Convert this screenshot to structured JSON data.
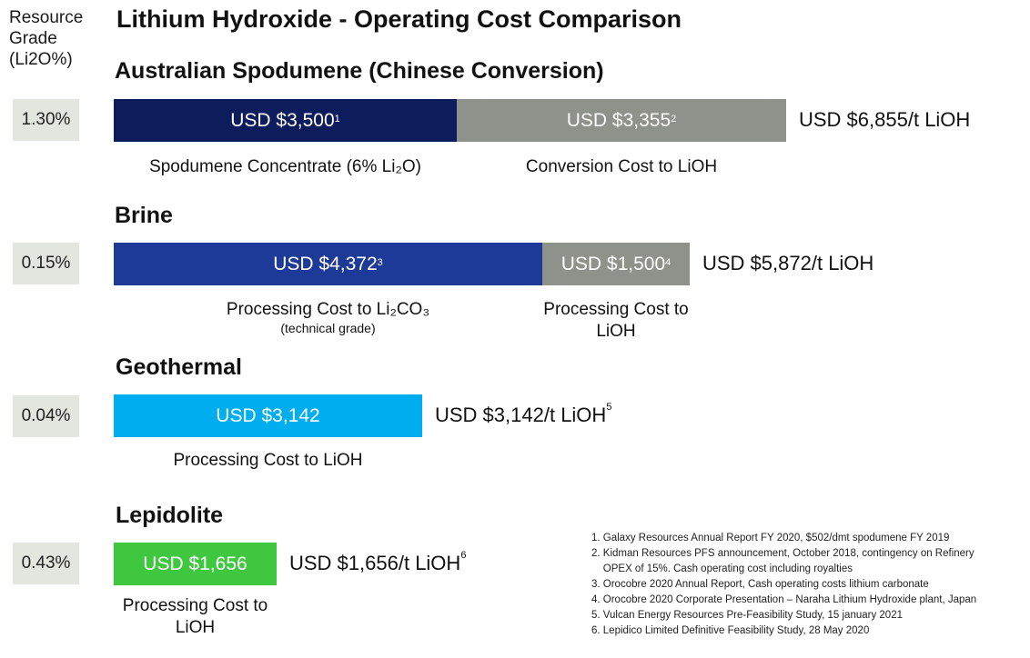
{
  "title": "Lithium Hydroxide - Operating Cost Comparison",
  "grade_header": "Resource Grade (Li2O%)",
  "chart_data": {
    "type": "bar",
    "orientation": "horizontal",
    "stacked": true,
    "unit": "USD/t LiOH",
    "groups": [
      {
        "name": "Australian Spodumene (Chinese Conversion)",
        "grade": "1.30%",
        "segments": [
          {
            "label": "Spodumene Concentrate (6% Li₂O)",
            "value": 3500,
            "display": "USD $3,500",
            "note": "1",
            "color": "#0c1c5c"
          },
          {
            "label": "Conversion Cost to LiOH",
            "value": 3355,
            "display": "USD $3,355",
            "note": "2",
            "color": "#8f918b"
          }
        ],
        "total": 6855,
        "total_display": "USD $6,855/t LiOH",
        "total_note": ""
      },
      {
        "name": "Brine",
        "grade": "0.15%",
        "segments": [
          {
            "label": "Processing Cost to Li₂CO₃",
            "sublabel": "(technical grade)",
            "value": 4372,
            "display": "USD $4,372",
            "note": "3",
            "color": "#1d3a99"
          },
          {
            "label": "Processing Cost to LiOH",
            "value": 1500,
            "display": "USD $1,500",
            "note": "4",
            "color": "#8f918b"
          }
        ],
        "total": 5872,
        "total_display": "USD $5,872/t LiOH",
        "total_note": ""
      },
      {
        "name": "Geothermal",
        "grade": "0.04%",
        "segments": [
          {
            "label": "Processing Cost to LiOH",
            "value": 3142,
            "display": "USD $3,142",
            "note": "",
            "color": "#00aeef"
          }
        ],
        "total": 3142,
        "total_display": "USD $3,142/t LiOH",
        "total_note": "5"
      },
      {
        "name": "Lepidolite",
        "grade": "0.43%",
        "segments": [
          {
            "label": "Processing Cost to LiOH",
            "value": 1656,
            "display": "USD $1,656",
            "note": "",
            "color": "#3fc83f"
          }
        ],
        "total": 1656,
        "total_display": "USD $1,656/t LiOH",
        "total_note": "6"
      }
    ]
  },
  "footnotes": [
    "1. Galaxy Resources Annual Report FY 2020, $502/dmt spodumene FY 2019",
    "2. Kidman Resources PFS announcement, October 2018, contingency on Refinery\n    OPEX of 15%. Cash operating cost including royalties",
    "3. Orocobre 2020 Annual Report, Cash operating costs lithium carbonate",
    "4. Orocobre 2020 Corporate Presentation – Naraha Lithium Hydroxide plant, Japan",
    "5. Vulcan Energy Resources Pre-Feasibility Study, 15 january 2021",
    "6. Lepidico Limited Definitive Feasibility Study, 28 May 2020"
  ]
}
